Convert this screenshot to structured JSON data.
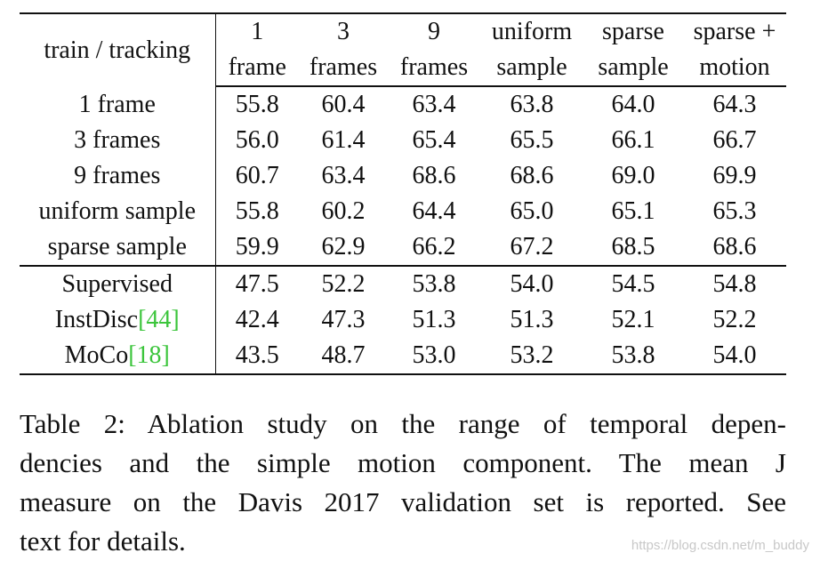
{
  "table": {
    "corner_header": "train / tracking",
    "columns": [
      {
        "line1": "1",
        "line2": "frame"
      },
      {
        "line1": "3",
        "line2": "frames"
      },
      {
        "line1": "9",
        "line2": "frames"
      },
      {
        "line1": "uniform",
        "line2": "sample"
      },
      {
        "line1": "sparse",
        "line2": "sample"
      },
      {
        "line1": "sparse +",
        "line2": "motion"
      }
    ],
    "group1": [
      {
        "label": "1 frame",
        "values": [
          "55.8",
          "60.4",
          "63.4",
          "63.8",
          "64.0",
          "64.3"
        ]
      },
      {
        "label": "3 frames",
        "values": [
          "56.0",
          "61.4",
          "65.4",
          "65.5",
          "66.1",
          "66.7"
        ]
      },
      {
        "label": "9 frames",
        "values": [
          "60.7",
          "63.4",
          "68.6",
          "68.6",
          "69.0",
          "69.9"
        ]
      },
      {
        "label": "uniform sample",
        "values": [
          "55.8",
          "60.2",
          "64.4",
          "65.0",
          "65.1",
          "65.3"
        ]
      },
      {
        "label": "sparse sample",
        "values": [
          "59.9",
          "62.9",
          "66.2",
          "67.2",
          "68.5",
          "68.6"
        ]
      }
    ],
    "group2": [
      {
        "label": "Supervised",
        "cite": "",
        "values": [
          "47.5",
          "52.2",
          "53.8",
          "54.0",
          "54.5",
          "54.8"
        ]
      },
      {
        "label": "InstDisc",
        "cite": "[44]",
        "values": [
          "42.4",
          "47.3",
          "51.3",
          "51.3",
          "52.1",
          "52.2"
        ]
      },
      {
        "label": "MoCo",
        "cite": "[18]",
        "values": [
          "43.5",
          "48.7",
          "53.0",
          "53.2",
          "53.8",
          "54.0"
        ]
      }
    ]
  },
  "caption": {
    "lines": [
      "Table 2: Ablation study on the range of temporal depen-",
      "dencies and the simple motion component. The mean J",
      "measure on the Davis 2017 validation set is reported. See",
      "text for details."
    ]
  },
  "watermark": "https://blog.csdn.net/m_buddy",
  "colors": {
    "citation": "#3cc53c",
    "text": "#111111",
    "watermark": "#c8c8c8"
  }
}
